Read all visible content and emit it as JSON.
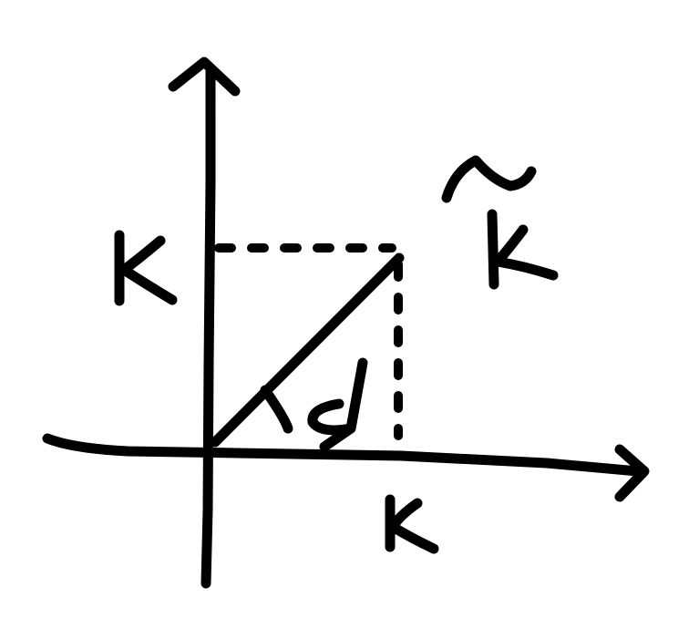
{
  "labels": {
    "y_axis_component": "K",
    "x_axis_component": "K",
    "vector": "K",
    "vector_accent": "~",
    "angle": "ϕ"
  },
  "colors": {
    "ink": "#000000",
    "background": "#ffffff"
  }
}
